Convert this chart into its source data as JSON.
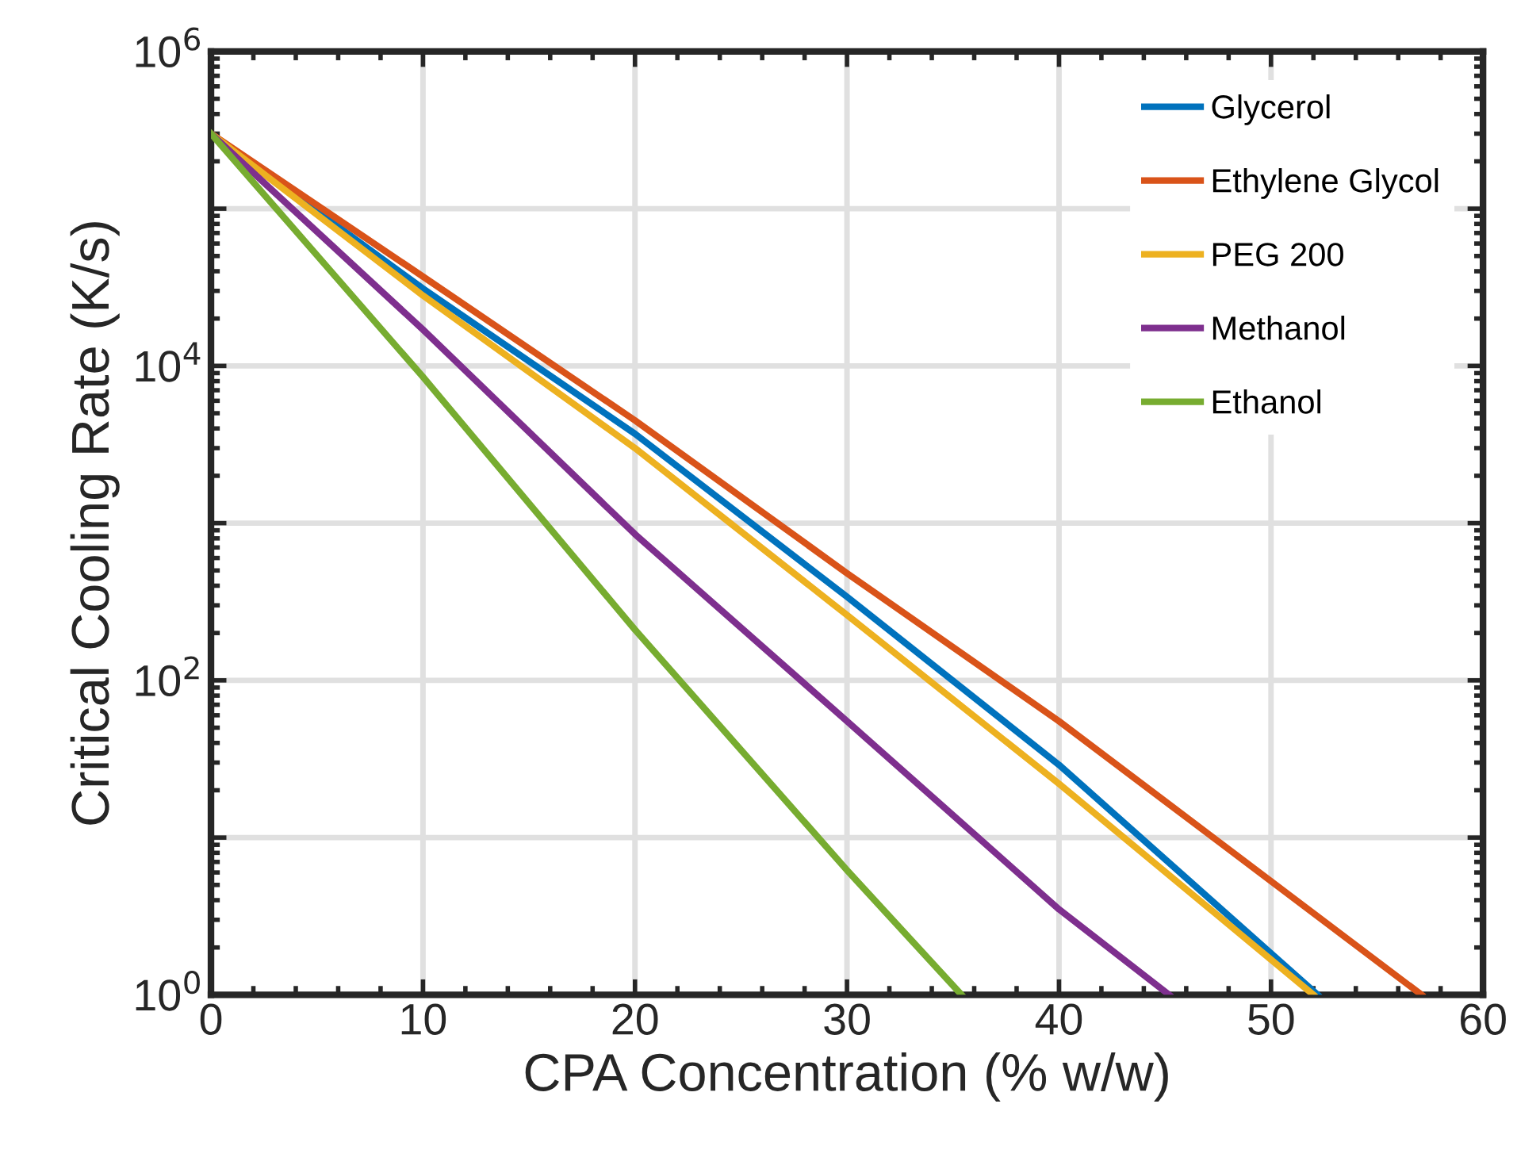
{
  "chart_data": {
    "type": "line",
    "xlabel": "CPA Concentration (% w/w)",
    "ylabel": "Critical Cooling Rate (K/s)",
    "log": "y",
    "grid": true,
    "legend": "top right",
    "xlim": [
      0,
      60
    ],
    "xticks": [
      0,
      10,
      20,
      30,
      40,
      50,
      60
    ],
    "ylim": [
      1,
      1000000
    ],
    "yticks": [
      {
        "value": 1,
        "label": "10$^{0}$"
      },
      {
        "value": 10,
        "label": null
      },
      {
        "value": 100,
        "label": "10$^{2}$"
      },
      {
        "value": 1000,
        "label": null
      },
      {
        "value": 10000,
        "label": "10$^{4}$"
      },
      {
        "value": 100000,
        "label": null
      },
      {
        "value": 1000000,
        "label": "10$^{6}$"
      }
    ],
    "series": [
      {
        "name": "Glycerol",
        "color": "#0072bd",
        "x": [
          0,
          10,
          20,
          30,
          40,
          52.2
        ],
        "values": [
          300000,
          31000,
          3700,
          340,
          29,
          1
        ]
      },
      {
        "name": "Ethylene Glycol",
        "color": "#d95319",
        "x": [
          0,
          10,
          20,
          30,
          40,
          57.1
        ],
        "values": [
          300000,
          37000,
          4500,
          480,
          55,
          1
        ]
      },
      {
        "name": "PEG 200",
        "color": "#edb120",
        "x": [
          0,
          10,
          20,
          30,
          40,
          52.0
        ],
        "values": [
          300000,
          28000,
          3000,
          260,
          22,
          1
        ]
      },
      {
        "name": "Methanol",
        "color": "#7e2f8e",
        "x": [
          0,
          10,
          20,
          30,
          40,
          45.2
        ],
        "values": [
          300000,
          17000,
          850,
          55,
          3.5,
          1
        ]
      },
      {
        "name": "Ethanol",
        "color": "#77ac30",
        "x": [
          0,
          10,
          20,
          30,
          35.4
        ],
        "values": [
          300000,
          8500,
          210,
          6.2,
          1
        ]
      }
    ]
  }
}
